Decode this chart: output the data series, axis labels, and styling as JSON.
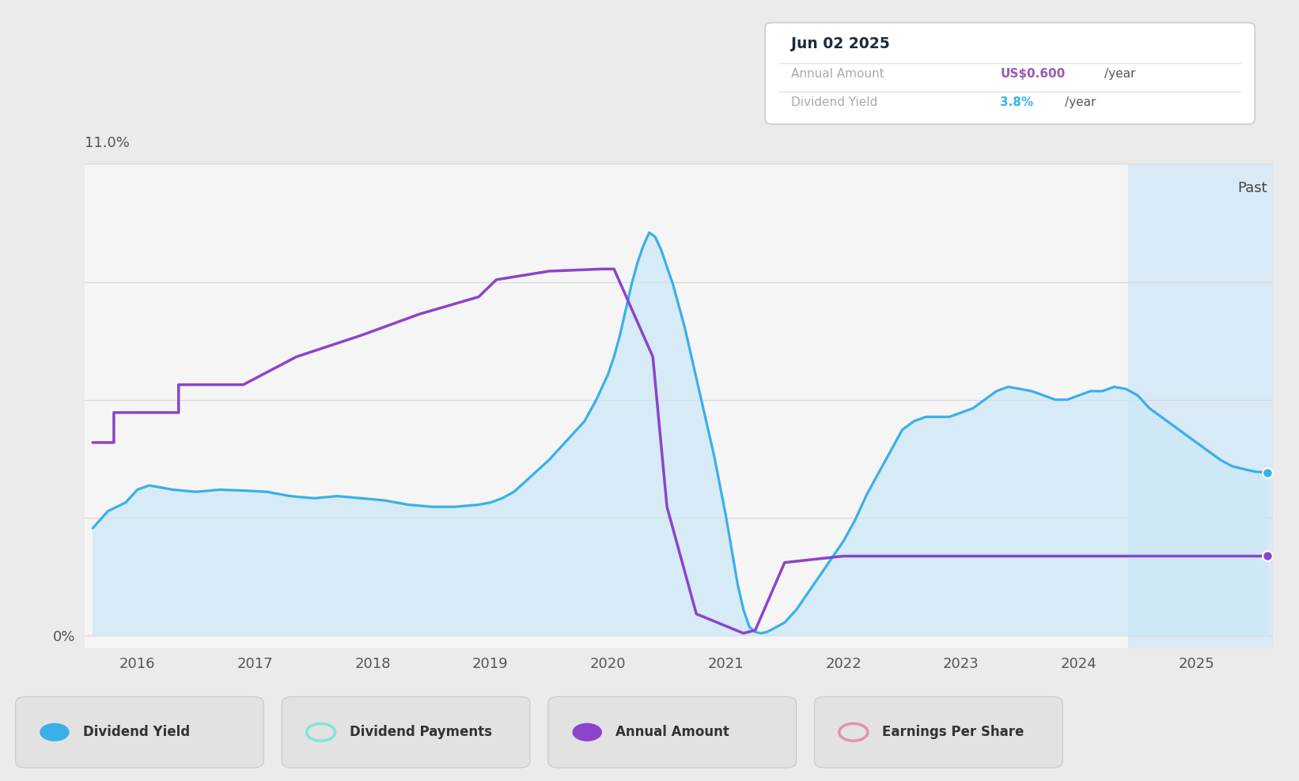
{
  "bg_color": "#ebebeb",
  "plot_bg_color": "#f5f5f5",
  "past_bg_color": "#d4e8f5",
  "y_max": 11.0,
  "y_min": -0.3,
  "x_min": 2015.55,
  "x_max": 2025.65,
  "past_start_x": 2024.42,
  "tooltip": {
    "date": "Jun 02 2025",
    "annual_amount_label": "Annual Amount",
    "annual_amount_value": "US$0.600",
    "annual_amount_unit": "/year",
    "dividend_yield_label": "Dividend Yield",
    "dividend_yield_value": "3.8%",
    "dividend_yield_unit": "/year",
    "annual_amount_color": "#9b59b6",
    "dividend_yield_color": "#3ab0e8"
  },
  "dividend_yield_color": "#3ab0e8",
  "dividend_yield_fill_top": "#c5dff0",
  "dividend_yield_fill_bottom": "#e0f0fa",
  "annual_amount_color": "#8b44cc",
  "grid_color": "#d8d8d8",
  "past_label_color": "#444444",
  "tick_color": "#555555",
  "legend_items": [
    {
      "label": "Dividend Yield",
      "color": "#3ab0e8",
      "filled": true
    },
    {
      "label": "Dividend Payments",
      "color": "#7de8d8",
      "filled": false
    },
    {
      "label": "Annual Amount",
      "color": "#8b44cc",
      "filled": true
    },
    {
      "label": "Earnings Per Share",
      "color": "#e890b0",
      "filled": false
    }
  ],
  "dividend_yield_x": [
    2015.62,
    2015.75,
    2015.9,
    2016.0,
    2016.1,
    2016.3,
    2016.5,
    2016.7,
    2016.9,
    2017.1,
    2017.3,
    2017.5,
    2017.7,
    2017.9,
    2018.1,
    2018.3,
    2018.5,
    2018.7,
    2018.9,
    2019.0,
    2019.1,
    2019.2,
    2019.3,
    2019.4,
    2019.5,
    2019.6,
    2019.7,
    2019.8,
    2019.9,
    2020.0,
    2020.05,
    2020.1,
    2020.15,
    2020.2,
    2020.25,
    2020.3,
    2020.35,
    2020.4,
    2020.45,
    2020.5,
    2020.55,
    2020.6,
    2020.65,
    2020.7,
    2020.75,
    2020.8,
    2020.85,
    2020.9,
    2020.95,
    2021.0,
    2021.05,
    2021.1,
    2021.15,
    2021.2,
    2021.25,
    2021.3,
    2021.35,
    2021.4,
    2021.5,
    2021.6,
    2021.7,
    2021.8,
    2021.9,
    2022.0,
    2022.1,
    2022.2,
    2022.3,
    2022.4,
    2022.5,
    2022.6,
    2022.7,
    2022.8,
    2022.9,
    2023.0,
    2023.1,
    2023.2,
    2023.3,
    2023.4,
    2023.5,
    2023.6,
    2023.7,
    2023.8,
    2023.9,
    2024.0,
    2024.1,
    2024.2,
    2024.3,
    2024.4,
    2024.5,
    2024.6,
    2024.7,
    2024.8,
    2024.9,
    2025.0,
    2025.1,
    2025.2,
    2025.3,
    2025.4,
    2025.5,
    2025.6
  ],
  "dividend_yield_y": [
    2.5,
    2.9,
    3.1,
    3.4,
    3.5,
    3.4,
    3.35,
    3.4,
    3.38,
    3.35,
    3.25,
    3.2,
    3.25,
    3.2,
    3.15,
    3.05,
    3.0,
    3.0,
    3.05,
    3.1,
    3.2,
    3.35,
    3.6,
    3.85,
    4.1,
    4.4,
    4.7,
    5.0,
    5.5,
    6.1,
    6.5,
    7.0,
    7.6,
    8.2,
    8.7,
    9.1,
    9.4,
    9.3,
    9.0,
    8.6,
    8.2,
    7.7,
    7.2,
    6.6,
    6.0,
    5.4,
    4.8,
    4.2,
    3.5,
    2.8,
    2.0,
    1.2,
    0.6,
    0.2,
    0.08,
    0.05,
    0.08,
    0.15,
    0.3,
    0.6,
    1.0,
    1.4,
    1.8,
    2.2,
    2.7,
    3.3,
    3.8,
    4.3,
    4.8,
    5.0,
    5.1,
    5.1,
    5.1,
    5.2,
    5.3,
    5.5,
    5.7,
    5.8,
    5.75,
    5.7,
    5.6,
    5.5,
    5.5,
    5.6,
    5.7,
    5.7,
    5.8,
    5.75,
    5.6,
    5.3,
    5.1,
    4.9,
    4.7,
    4.5,
    4.3,
    4.1,
    3.95,
    3.88,
    3.82,
    3.8
  ],
  "annual_amount_x": [
    2015.62,
    2015.8,
    2015.8,
    2016.35,
    2016.35,
    2016.35,
    2016.35,
    2016.9,
    2016.9,
    2017.35,
    2017.35,
    2017.9,
    2017.9,
    2018.4,
    2018.4,
    2018.9,
    2018.9,
    2019.05,
    2019.05,
    2019.5,
    2019.5,
    2019.95,
    2019.95,
    2020.05,
    2020.05,
    2020.38,
    2020.38,
    2020.5,
    2020.5,
    2020.75,
    2020.75,
    2021.15,
    2021.15,
    2021.25,
    2021.25,
    2021.5,
    2021.5,
    2022.0,
    2022.0,
    2025.6
  ],
  "annual_amount_y": [
    4.5,
    4.5,
    5.2,
    5.2,
    5.2,
    5.85,
    5.85,
    5.85,
    5.85,
    6.5,
    6.5,
    7.0,
    7.0,
    7.5,
    7.5,
    7.9,
    7.9,
    8.3,
    8.3,
    8.5,
    8.5,
    8.55,
    8.55,
    8.55,
    8.55,
    6.5,
    6.5,
    3.0,
    3.0,
    0.5,
    0.5,
    0.05,
    0.05,
    0.12,
    0.12,
    1.7,
    1.7,
    1.85,
    1.85,
    1.85
  ],
  "x_ticks": [
    2016,
    2017,
    2018,
    2019,
    2020,
    2021,
    2022,
    2023,
    2024,
    2025
  ],
  "x_tick_labels": [
    "2016",
    "2017",
    "2018",
    "2019",
    "2020",
    "2021",
    "2022",
    "2023",
    "2024",
    "2025"
  ]
}
